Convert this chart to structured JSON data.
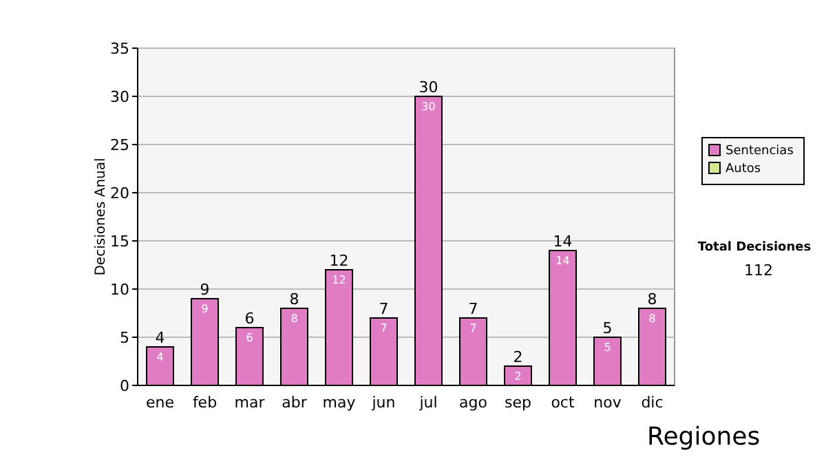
{
  "chart_data": {
    "type": "bar",
    "ylabel": "Decisiones Anual",
    "categories": [
      "ene",
      "feb",
      "mar",
      "abr",
      "may",
      "jun",
      "jul",
      "ago",
      "sep",
      "oct",
      "nov",
      "dic"
    ],
    "series": [
      {
        "name": "Sentencias",
        "color": "#e07cc4",
        "values": [
          4,
          9,
          6,
          8,
          12,
          7,
          30,
          7,
          2,
          14,
          5,
          8
        ],
        "value_labels": [
          "4",
          "9",
          "6",
          "8",
          "12",
          "7",
          "30",
          "7",
          "2",
          "14",
          "5",
          "8"
        ]
      },
      {
        "name": "Autos",
        "color": "#d4e890",
        "values": [
          0,
          0,
          0,
          0,
          0,
          0,
          0,
          0,
          0,
          0,
          0,
          0
        ]
      }
    ],
    "stacked": true,
    "totals": [
      "4",
      "9",
      "6",
      "8",
      "12",
      "7",
      "30",
      "7",
      "2",
      "14",
      "5",
      "8"
    ],
    "ylim": [
      0,
      35
    ],
    "yticks": [
      0,
      5,
      10,
      15,
      20,
      25,
      30,
      35
    ],
    "grid": "y",
    "legend": "right",
    "annotations": [
      "Total Decisiones",
      "112",
      "Regiones"
    ]
  }
}
